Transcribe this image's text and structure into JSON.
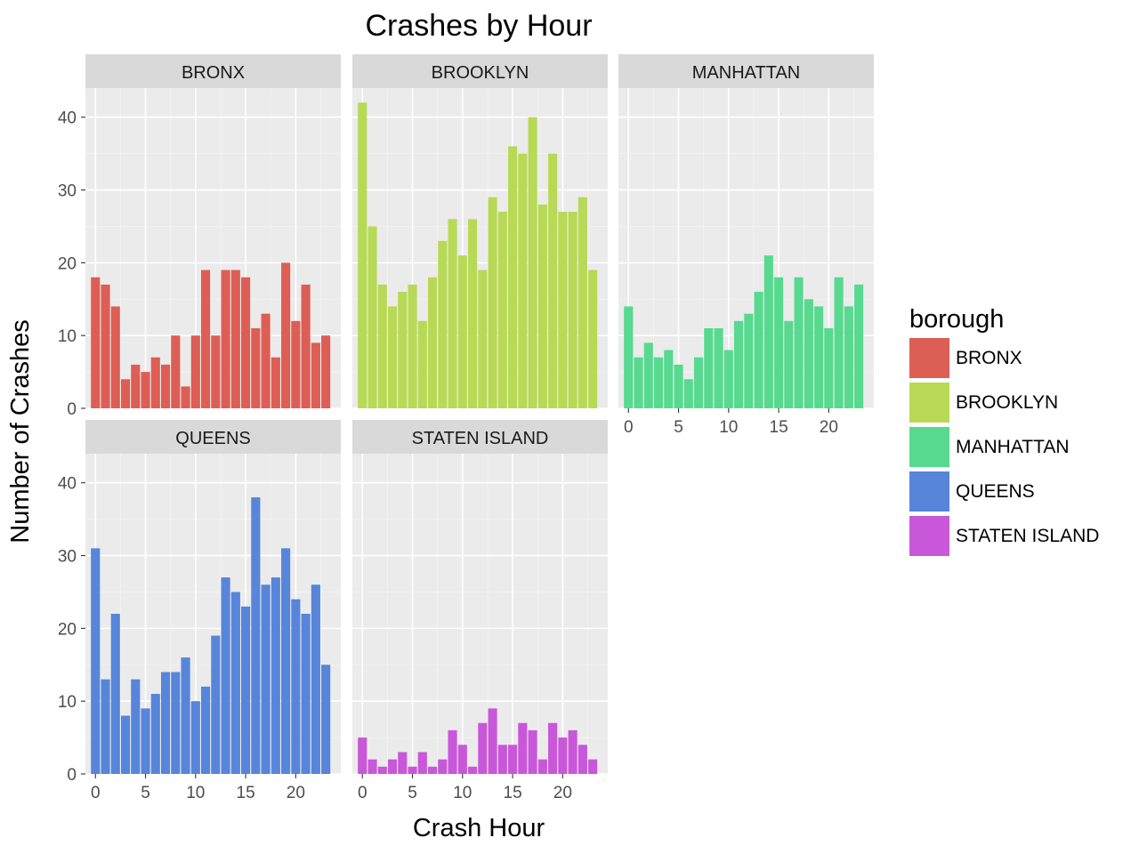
{
  "chart_data": {
    "type": "bar",
    "title": "Crashes by Hour",
    "xlabel": "Crash Hour",
    "ylabel": "Number of Crashes",
    "x": [
      0,
      1,
      2,
      3,
      4,
      5,
      6,
      7,
      8,
      9,
      10,
      11,
      12,
      13,
      14,
      15,
      16,
      17,
      18,
      19,
      20,
      21,
      22,
      23
    ],
    "xlim": [
      -1,
      24.5
    ],
    "ylim": [
      0,
      44
    ],
    "x_ticks": [
      0,
      5,
      10,
      15,
      20
    ],
    "y_ticks": [
      0,
      10,
      20,
      30,
      40
    ],
    "grid": true,
    "facets": [
      {
        "name": "BRONX",
        "color": "#dc5e55",
        "values": [
          18,
          17,
          14,
          4,
          6,
          5,
          7,
          6,
          10,
          3,
          10,
          19,
          10,
          19,
          19,
          18,
          11,
          13,
          7,
          20,
          12,
          17,
          9,
          10
        ]
      },
      {
        "name": "BROOKLYN",
        "color": "#b8d955",
        "values": [
          42,
          25,
          17,
          14,
          16,
          17,
          12,
          18,
          23,
          26,
          21,
          26,
          19,
          29,
          27,
          36,
          35,
          40,
          28,
          35,
          27,
          27,
          29,
          19
        ]
      },
      {
        "name": "MANHATTAN",
        "color": "#57d98f",
        "values": [
          14,
          7,
          9,
          7,
          8,
          6,
          4,
          7,
          11,
          11,
          8,
          12,
          13,
          16,
          21,
          18,
          12,
          18,
          15,
          14,
          11,
          18,
          14,
          17
        ]
      },
      {
        "name": "QUEENS",
        "color": "#5785d9",
        "values": [
          31,
          13,
          22,
          8,
          13,
          9,
          11,
          14,
          14,
          16,
          10,
          12,
          19,
          27,
          25,
          23,
          38,
          26,
          27,
          31,
          24,
          22,
          26,
          15
        ]
      },
      {
        "name": "STATEN ISLAND",
        "color": "#c857d9",
        "values": [
          5,
          2,
          1,
          2,
          3,
          1,
          3,
          1,
          2,
          6,
          4,
          1,
          7,
          9,
          4,
          4,
          7,
          6,
          2,
          7,
          5,
          6,
          4,
          2
        ]
      }
    ],
    "legend": {
      "title": "borough",
      "position": "right",
      "items": [
        "BRONX",
        "BROOKLYN",
        "MANHATTAN",
        "QUEENS",
        "STATEN ISLAND"
      ]
    }
  }
}
